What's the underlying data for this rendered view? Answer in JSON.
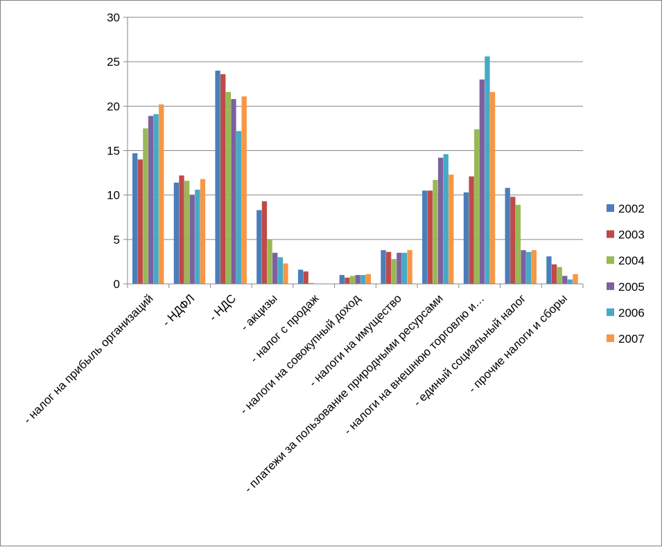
{
  "chart_data": {
    "type": "bar",
    "categories": [
      "- налог на прибыль организаций",
      "- НДФЛ",
      "- НДС",
      "- акцизы",
      "- налог с продаж",
      "- налоги на совокупный доход",
      "- налоги на имущество",
      "- платежи за пользование природными ресурсами",
      "- налоги на внешнюю торговлю и…",
      "- единый социальный налог",
      "- прочие налоги и сборы"
    ],
    "series": [
      {
        "name": "2002",
        "color": "#4a7ebb",
        "values": [
          14.7,
          11.4,
          24.0,
          8.3,
          1.6,
          1.0,
          3.8,
          10.5,
          10.3,
          10.8,
          3.1
        ]
      },
      {
        "name": "2003",
        "color": "#be4b48",
        "values": [
          14.0,
          12.2,
          23.6,
          9.3,
          1.4,
          0.7,
          3.6,
          10.5,
          12.1,
          9.8,
          2.2
        ]
      },
      {
        "name": "2004",
        "color": "#98b954",
        "values": [
          17.5,
          11.6,
          21.6,
          5.0,
          0.1,
          0.9,
          2.8,
          11.7,
          17.4,
          8.9,
          1.9
        ]
      },
      {
        "name": "2005",
        "color": "#7d60a0",
        "values": [
          18.9,
          10.0,
          20.8,
          3.5,
          0.0,
          1.0,
          3.5,
          14.2,
          23.0,
          3.8,
          0.9
        ]
      },
      {
        "name": "2006",
        "color": "#46aac5",
        "values": [
          19.1,
          10.6,
          17.2,
          3.0,
          0.0,
          1.0,
          3.5,
          14.6,
          25.6,
          3.6,
          0.5
        ]
      },
      {
        "name": "2007",
        "color": "#f79646",
        "values": [
          20.2,
          11.8,
          21.1,
          2.3,
          0.0,
          1.1,
          3.8,
          12.3,
          21.6,
          3.8,
          1.1
        ]
      }
    ],
    "y_ticks": [
      "0",
      "5",
      "10",
      "15",
      "20",
      "25",
      "30"
    ],
    "ylim": [
      0,
      30
    ],
    "grid": true,
    "legend_position": "right",
    "title": "",
    "xlabel": "",
    "ylabel": ""
  }
}
